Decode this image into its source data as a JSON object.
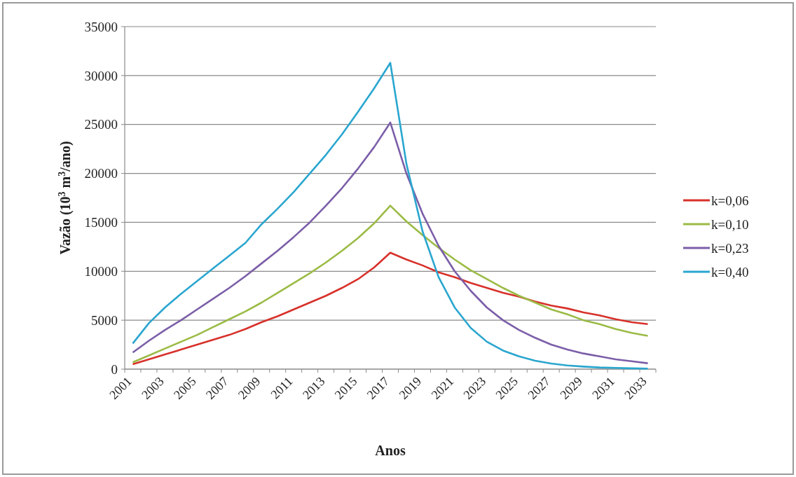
{
  "chart_data": {
    "type": "line",
    "xlabel": "Anos",
    "ylabel": "Vazão (10$^{3}$ m$^{3}$/ano)",
    "categories": [
      "2001",
      null,
      "2003",
      null,
      "2005",
      null,
      "2007",
      null,
      "2009",
      null,
      "2011",
      null,
      "2013",
      null,
      "2015",
      null,
      "2017",
      null,
      "2019",
      null,
      "2021",
      null,
      "2023",
      null,
      "2025",
      null,
      "2027",
      null,
      "2029",
      null,
      "2031",
      null,
      "2033"
    ],
    "series": [
      {
        "name": "k=0,06",
        "color": "#d7312a",
        "values": [
          500,
          1000,
          1500,
          2000,
          2500,
          3000,
          3500,
          4100,
          4800,
          5400,
          6100,
          6800,
          7500,
          8300,
          9200,
          10400,
          11900,
          11200,
          10600,
          9900,
          9400,
          8800,
          8300,
          7800,
          7400,
          6900,
          6500,
          6200,
          5800,
          5500,
          5100,
          4800,
          4600
        ]
      },
      {
        "name": "k=0,10",
        "color": "#9bbb45",
        "values": [
          700,
          1400,
          2100,
          2800,
          3500,
          4300,
          5100,
          5900,
          6800,
          7800,
          8800,
          9800,
          10900,
          12100,
          13400,
          14900,
          16700,
          15100,
          13700,
          12400,
          11200,
          10100,
          9200,
          8300,
          7500,
          6800,
          6100,
          5600,
          5000,
          4600,
          4100,
          3700,
          3400
        ]
      },
      {
        "name": "k=0,23",
        "color": "#7b5ea8",
        "values": [
          1700,
          2900,
          4000,
          5000,
          6100,
          7200,
          8300,
          9500,
          10800,
          12100,
          13500,
          15000,
          16700,
          18500,
          20500,
          22700,
          25200,
          20000,
          15900,
          12600,
          10000,
          8000,
          6300,
          5000,
          4000,
          3200,
          2500,
          2000,
          1600,
          1300,
          1000,
          800,
          600
        ]
      },
      {
        "name": "k=0,40",
        "color": "#2aa6cf",
        "values": [
          2620,
          4700,
          6300,
          7700,
          9000,
          10300,
          11600,
          12900,
          14800,
          16400,
          18100,
          20000,
          21900,
          24000,
          26300,
          28700,
          31300,
          21000,
          14100,
          9400,
          6300,
          4200,
          2800,
          1900,
          1300,
          860,
          570,
          380,
          260,
          170,
          120,
          80,
          50
        ]
      }
    ],
    "ylim": [
      0,
      35000
    ],
    "yticks": [
      0,
      5000,
      10000,
      15000,
      20000,
      25000,
      30000,
      35000
    ],
    "grid": "y",
    "legend": "right",
    "marker": "none",
    "line_style": "solid"
  }
}
